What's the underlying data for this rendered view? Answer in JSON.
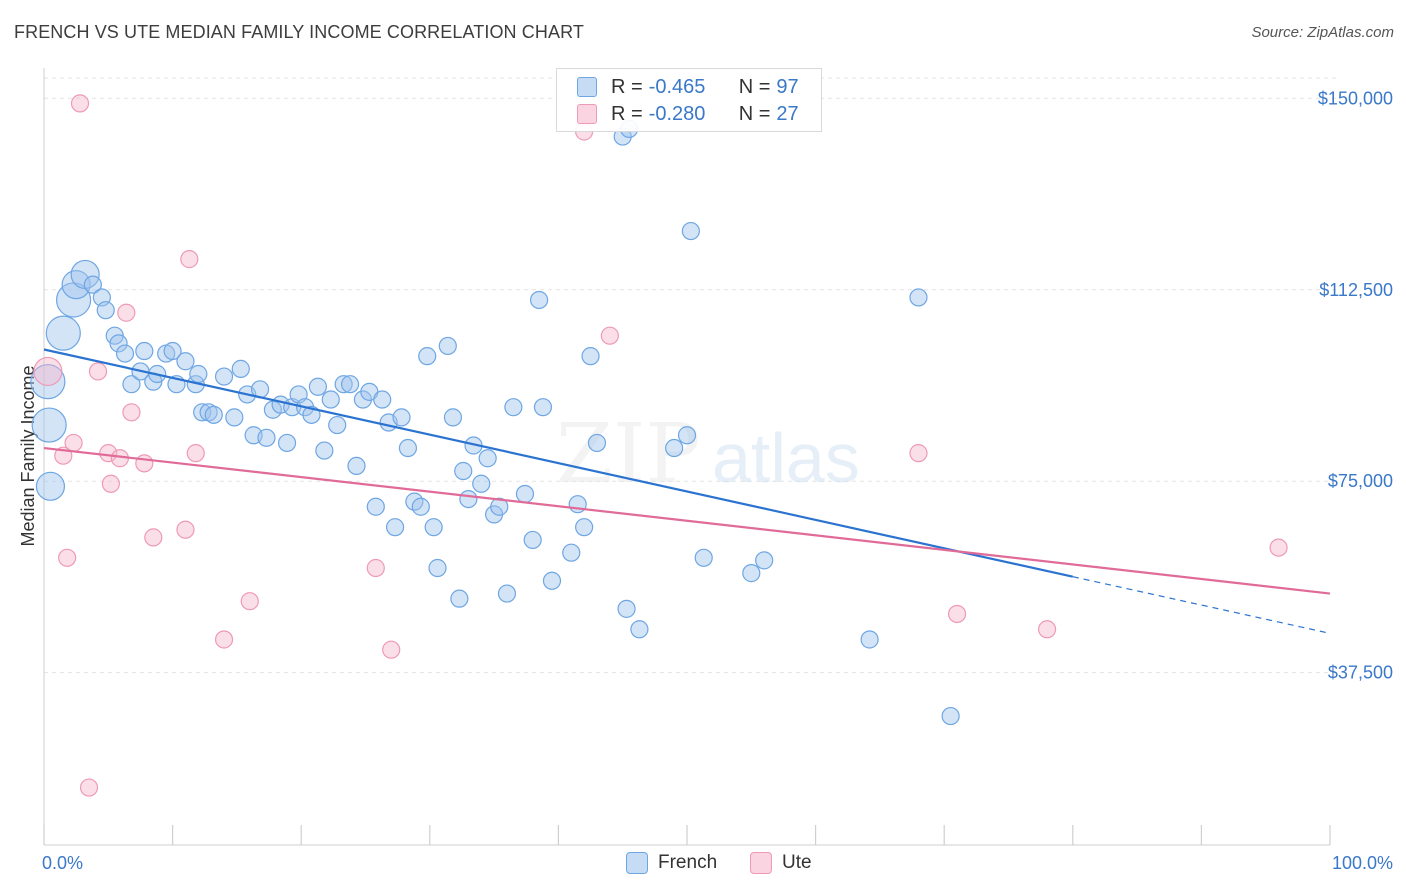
{
  "title": "FRENCH VS UTE MEDIAN FAMILY INCOME CORRELATION CHART",
  "source": "Source: ZipAtlas.com",
  "watermark": {
    "zip": "ZIP",
    "atlas": "atlas"
  },
  "colors": {
    "french_fill": "rgba(160,196,238,0.45)",
    "french_stroke": "#6ea6e3",
    "french_line": "#2a73d0",
    "ute_fill": "rgba(246,184,204,0.45)",
    "ute_stroke": "#ee9ab5",
    "ute_line": "#e06b98",
    "tick_text": "#3a78c9",
    "grid": "#e3e3e3"
  },
  "legend": {
    "rows": [
      {
        "r_label": "R =",
        "r_value": "-0.465",
        "n_label": "N =",
        "n_value": "97"
      },
      {
        "r_label": "R =",
        "r_value": "-0.280",
        "n_label": "N =",
        "n_value": "27"
      }
    ]
  },
  "bottom_legend": {
    "french": "French",
    "ute": "Ute"
  },
  "chart_data": {
    "type": "scatter",
    "title": "FRENCH VS UTE MEDIAN FAMILY INCOME CORRELATION CHART",
    "xlabel": "",
    "ylabel": "Median Family Income",
    "xlim": [
      0,
      100
    ],
    "ylim": [
      3750,
      157500
    ],
    "x_tick_labels": [
      "0.0%",
      "100.0%"
    ],
    "y_ticks": [
      37500,
      75000,
      112500,
      150000
    ],
    "y_tick_labels": [
      "$37,500",
      "$75,000",
      "$112,500",
      "$150,000"
    ],
    "grid": true,
    "legend_position": "top-center",
    "series": [
      {
        "name": "French",
        "r": -0.465,
        "n": 97,
        "trend": {
          "x0": 0,
          "y0": 100800,
          "x1": 80,
          "y1": 56300,
          "dashed_to_x": 100,
          "dashed_to_y": 45200
        },
        "points": [
          {
            "x": 0.3,
            "y": 94500,
            "s": 3
          },
          {
            "x": 0.4,
            "y": 86000,
            "s": 3
          },
          {
            "x": 0.5,
            "y": 74000,
            "s": 2
          },
          {
            "x": 1.5,
            "y": 104000,
            "s": 3
          },
          {
            "x": 2.3,
            "y": 110500,
            "s": 3
          },
          {
            "x": 2.5,
            "y": 113500,
            "s": 2
          },
          {
            "x": 3.2,
            "y": 115500,
            "s": 2
          },
          {
            "x": 3.8,
            "y": 113500,
            "s": 1
          },
          {
            "x": 4.5,
            "y": 111000,
            "s": 1
          },
          {
            "x": 4.8,
            "y": 108500,
            "s": 1
          },
          {
            "x": 5.5,
            "y": 103500,
            "s": 1
          },
          {
            "x": 5.8,
            "y": 102000,
            "s": 1
          },
          {
            "x": 6.3,
            "y": 100000,
            "s": 1
          },
          {
            "x": 6.8,
            "y": 94000,
            "s": 1
          },
          {
            "x": 7.5,
            "y": 96500,
            "s": 1
          },
          {
            "x": 7.8,
            "y": 100500,
            "s": 1
          },
          {
            "x": 8.5,
            "y": 94500,
            "s": 1
          },
          {
            "x": 8.8,
            "y": 96000,
            "s": 1
          },
          {
            "x": 9.5,
            "y": 100000,
            "s": 1
          },
          {
            "x": 10.0,
            "y": 100500,
            "s": 1
          },
          {
            "x": 10.3,
            "y": 94000,
            "s": 1
          },
          {
            "x": 11.0,
            "y": 98500,
            "s": 1
          },
          {
            "x": 11.8,
            "y": 94000,
            "s": 1
          },
          {
            "x": 12.0,
            "y": 96000,
            "s": 1
          },
          {
            "x": 12.3,
            "y": 88500,
            "s": 1
          },
          {
            "x": 12.8,
            "y": 88500,
            "s": 1
          },
          {
            "x": 13.2,
            "y": 88000,
            "s": 1
          },
          {
            "x": 14.0,
            "y": 95500,
            "s": 1
          },
          {
            "x": 14.8,
            "y": 87500,
            "s": 1
          },
          {
            "x": 15.3,
            "y": 97000,
            "s": 1
          },
          {
            "x": 15.8,
            "y": 92000,
            "s": 1
          },
          {
            "x": 16.3,
            "y": 84000,
            "s": 1
          },
          {
            "x": 16.8,
            "y": 93000,
            "s": 1
          },
          {
            "x": 17.3,
            "y": 83500,
            "s": 1
          },
          {
            "x": 17.8,
            "y": 89000,
            "s": 1
          },
          {
            "x": 18.4,
            "y": 90000,
            "s": 1
          },
          {
            "x": 18.9,
            "y": 82500,
            "s": 1
          },
          {
            "x": 19.3,
            "y": 89500,
            "s": 1
          },
          {
            "x": 19.8,
            "y": 92000,
            "s": 1
          },
          {
            "x": 20.3,
            "y": 89500,
            "s": 1
          },
          {
            "x": 20.8,
            "y": 88000,
            "s": 1
          },
          {
            "x": 21.3,
            "y": 93500,
            "s": 1
          },
          {
            "x": 21.8,
            "y": 81000,
            "s": 1
          },
          {
            "x": 22.3,
            "y": 91000,
            "s": 1
          },
          {
            "x": 22.8,
            "y": 86000,
            "s": 1
          },
          {
            "x": 23.3,
            "y": 94000,
            "s": 1
          },
          {
            "x": 23.8,
            "y": 94000,
            "s": 1
          },
          {
            "x": 24.3,
            "y": 78000,
            "s": 1
          },
          {
            "x": 24.8,
            "y": 91000,
            "s": 1
          },
          {
            "x": 25.3,
            "y": 92500,
            "s": 1
          },
          {
            "x": 25.8,
            "y": 70000,
            "s": 1
          },
          {
            "x": 26.3,
            "y": 91000,
            "s": 1
          },
          {
            "x": 26.8,
            "y": 86500,
            "s": 1
          },
          {
            "x": 27.3,
            "y": 66000,
            "s": 1
          },
          {
            "x": 27.8,
            "y": 87500,
            "s": 1
          },
          {
            "x": 28.3,
            "y": 81500,
            "s": 1
          },
          {
            "x": 28.8,
            "y": 71000,
            "s": 1
          },
          {
            "x": 29.3,
            "y": 70000,
            "s": 1
          },
          {
            "x": 29.8,
            "y": 99500,
            "s": 1
          },
          {
            "x": 30.3,
            "y": 66000,
            "s": 1
          },
          {
            "x": 30.6,
            "y": 58000,
            "s": 1
          },
          {
            "x": 31.4,
            "y": 101500,
            "s": 1
          },
          {
            "x": 31.8,
            "y": 87500,
            "s": 1
          },
          {
            "x": 32.3,
            "y": 52000,
            "s": 1
          },
          {
            "x": 32.6,
            "y": 77000,
            "s": 1
          },
          {
            "x": 33.0,
            "y": 71500,
            "s": 1
          },
          {
            "x": 33.4,
            "y": 82000,
            "s": 1
          },
          {
            "x": 34.0,
            "y": 74500,
            "s": 1
          },
          {
            "x": 34.5,
            "y": 79500,
            "s": 1
          },
          {
            "x": 35.0,
            "y": 68500,
            "s": 1
          },
          {
            "x": 35.4,
            "y": 70000,
            "s": 1
          },
          {
            "x": 36.0,
            "y": 53000,
            "s": 1
          },
          {
            "x": 36.5,
            "y": 89500,
            "s": 1
          },
          {
            "x": 37.4,
            "y": 72500,
            "s": 1
          },
          {
            "x": 38.0,
            "y": 63500,
            "s": 1
          },
          {
            "x": 38.5,
            "y": 110500,
            "s": 1
          },
          {
            "x": 38.8,
            "y": 89500,
            "s": 1
          },
          {
            "x": 39.5,
            "y": 55500,
            "s": 1
          },
          {
            "x": 41.0,
            "y": 61000,
            "s": 1
          },
          {
            "x": 41.5,
            "y": 70500,
            "s": 1
          },
          {
            "x": 42.0,
            "y": 66000,
            "s": 1
          },
          {
            "x": 42.5,
            "y": 99500,
            "s": 1
          },
          {
            "x": 43.0,
            "y": 82500,
            "s": 1
          },
          {
            "x": 45.0,
            "y": 142500,
            "s": 1
          },
          {
            "x": 45.3,
            "y": 50000,
            "s": 1
          },
          {
            "x": 46.3,
            "y": 46000,
            "s": 1
          },
          {
            "x": 49.0,
            "y": 81500,
            "s": 1
          },
          {
            "x": 50.0,
            "y": 84000,
            "s": 1
          },
          {
            "x": 50.3,
            "y": 124000,
            "s": 1
          },
          {
            "x": 51.3,
            "y": 60000,
            "s": 1
          },
          {
            "x": 55.0,
            "y": 57000,
            "s": 1
          },
          {
            "x": 56.0,
            "y": 59500,
            "s": 1
          },
          {
            "x": 64.2,
            "y": 44000,
            "s": 1
          },
          {
            "x": 68.0,
            "y": 111000,
            "s": 1
          },
          {
            "x": 70.5,
            "y": 29000,
            "s": 1
          },
          {
            "x": 45.5,
            "y": 144000,
            "s": 1
          }
        ]
      },
      {
        "name": "Ute",
        "r": -0.28,
        "n": 27,
        "trend": {
          "x0": 0,
          "y0": 81500,
          "x1": 100,
          "y1": 53000
        },
        "points": [
          {
            "x": 0.3,
            "y": 96500,
            "s": 2
          },
          {
            "x": 1.5,
            "y": 80000,
            "s": 1
          },
          {
            "x": 1.8,
            "y": 60000,
            "s": 1
          },
          {
            "x": 2.3,
            "y": 82500,
            "s": 1
          },
          {
            "x": 2.8,
            "y": 149000,
            "s": 1
          },
          {
            "x": 3.5,
            "y": 15000,
            "s": 1
          },
          {
            "x": 4.2,
            "y": 96500,
            "s": 1
          },
          {
            "x": 5.0,
            "y": 80500,
            "s": 1
          },
          {
            "x": 5.2,
            "y": 74500,
            "s": 1
          },
          {
            "x": 5.9,
            "y": 79500,
            "s": 1
          },
          {
            "x": 6.4,
            "y": 108000,
            "s": 1
          },
          {
            "x": 6.8,
            "y": 88500,
            "s": 1
          },
          {
            "x": 7.8,
            "y": 78500,
            "s": 1
          },
          {
            "x": 8.5,
            "y": 64000,
            "s": 1
          },
          {
            "x": 11.0,
            "y": 65500,
            "s": 1
          },
          {
            "x": 11.3,
            "y": 118500,
            "s": 1
          },
          {
            "x": 11.8,
            "y": 80500,
            "s": 1
          },
          {
            "x": 14.0,
            "y": 44000,
            "s": 1
          },
          {
            "x": 16.0,
            "y": 51500,
            "s": 1
          },
          {
            "x": 25.8,
            "y": 58000,
            "s": 1
          },
          {
            "x": 27.0,
            "y": 42000,
            "s": 1
          },
          {
            "x": 42.0,
            "y": 143500,
            "s": 1
          },
          {
            "x": 44.0,
            "y": 103500,
            "s": 1
          },
          {
            "x": 68.0,
            "y": 80500,
            "s": 1
          },
          {
            "x": 71.0,
            "y": 49000,
            "s": 1
          },
          {
            "x": 78.0,
            "y": 46000,
            "s": 1
          },
          {
            "x": 96.0,
            "y": 62000,
            "s": 1
          }
        ]
      }
    ]
  }
}
